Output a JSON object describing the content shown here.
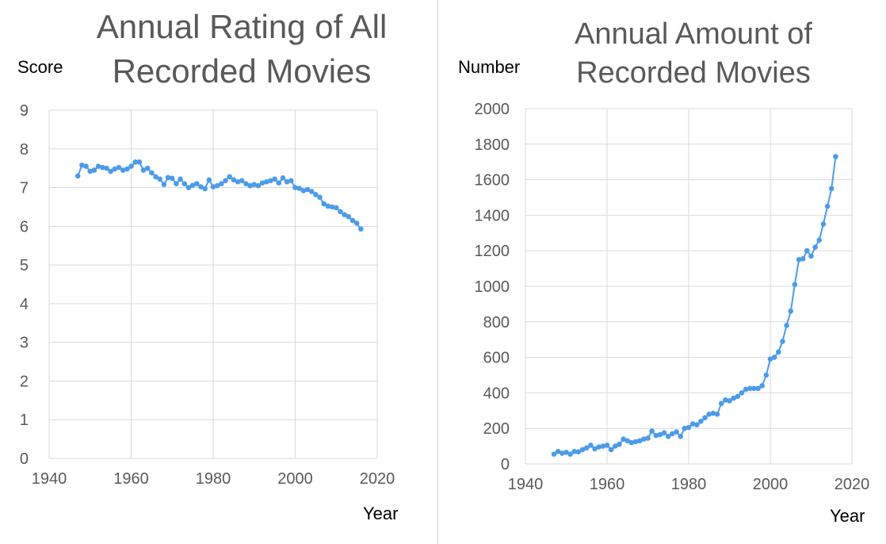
{
  "colors": {
    "series": "#4C9BE8",
    "grid": "#D9D9D9",
    "title": "#595959",
    "text": "#000000"
  },
  "chart_data": [
    {
      "type": "line",
      "title_lines": [
        "Annual Rating of All",
        "Recorded Movies"
      ],
      "xlabel": "Year",
      "ylabel": "Score",
      "xlim": [
        1940,
        2020
      ],
      "ylim": [
        0,
        9
      ],
      "xticks": [
        1940,
        1960,
        1980,
        2000,
        2020
      ],
      "yticks": [
        0,
        1,
        2,
        3,
        4,
        5,
        6,
        7,
        8,
        9
      ],
      "grid": true,
      "markers": true,
      "series": [
        {
          "x": [
            1947,
            1948,
            1949,
            1950,
            1951,
            1952,
            1953,
            1954,
            1955,
            1956,
            1957,
            1958,
            1959,
            1960,
            1961,
            1962,
            1963,
            1964,
            1965,
            1966,
            1967,
            1968,
            1969,
            1970,
            1971,
            1972,
            1973,
            1974,
            1975,
            1976,
            1977,
            1978,
            1979,
            1980,
            1981,
            1982,
            1983,
            1984,
            1985,
            1986,
            1987,
            1988,
            1989,
            1990,
            1991,
            1992,
            1993,
            1994,
            1995,
            1996,
            1997,
            1998,
            1999,
            2000,
            2001,
            2002,
            2003,
            2004,
            2005,
            2006,
            2007,
            2008,
            2009,
            2010,
            2011,
            2012,
            2013,
            2014,
            2015,
            2016
          ],
          "y": [
            7.3,
            7.58,
            7.55,
            7.42,
            7.45,
            7.55,
            7.52,
            7.5,
            7.42,
            7.48,
            7.52,
            7.45,
            7.48,
            7.55,
            7.66,
            7.66,
            7.45,
            7.5,
            7.38,
            7.28,
            7.22,
            7.08,
            7.26,
            7.24,
            7.1,
            7.22,
            7.1,
            7.0,
            7.06,
            7.1,
            7.02,
            6.97,
            7.2,
            7.02,
            7.05,
            7.1,
            7.18,
            7.28,
            7.2,
            7.15,
            7.18,
            7.1,
            7.05,
            7.08,
            7.05,
            7.12,
            7.15,
            7.18,
            7.22,
            7.12,
            7.25,
            7.15,
            7.18,
            7.0,
            6.98,
            6.92,
            6.95,
            6.9,
            6.82,
            6.75,
            6.58,
            6.52,
            6.5,
            6.48,
            6.38,
            6.3,
            6.25,
            6.15,
            6.08,
            5.93
          ]
        }
      ]
    },
    {
      "type": "line",
      "title_lines": [
        "Annual Amount of",
        "Recorded Movies"
      ],
      "xlabel": "Year",
      "ylabel": "Number",
      "xlim": [
        1940,
        2020
      ],
      "ylim": [
        0,
        2000
      ],
      "xticks": [
        1940,
        1960,
        1980,
        2000,
        2020
      ],
      "yticks": [
        0,
        200,
        400,
        600,
        800,
        1000,
        1200,
        1400,
        1600,
        1800,
        2000
      ],
      "grid": true,
      "markers": true,
      "series": [
        {
          "x": [
            1947,
            1948,
            1949,
            1950,
            1951,
            1952,
            1953,
            1954,
            1955,
            1956,
            1957,
            1958,
            1959,
            1960,
            1961,
            1962,
            1963,
            1964,
            1965,
            1966,
            1967,
            1968,
            1969,
            1970,
            1971,
            1972,
            1973,
            1974,
            1975,
            1976,
            1977,
            1978,
            1979,
            1980,
            1981,
            1982,
            1983,
            1984,
            1985,
            1986,
            1987,
            1988,
            1989,
            1990,
            1991,
            1992,
            1993,
            1994,
            1995,
            1996,
            1997,
            1998,
            1999,
            2000,
            2001,
            2002,
            2003,
            2004,
            2005,
            2006,
            2007,
            2008,
            2009,
            2010,
            2011,
            2012,
            2013,
            2014,
            2015,
            2016
          ],
          "y": [
            55,
            70,
            60,
            65,
            55,
            70,
            68,
            80,
            90,
            105,
            85,
            95,
            100,
            105,
            80,
            100,
            110,
            140,
            130,
            120,
            125,
            130,
            140,
            145,
            185,
            160,
            165,
            175,
            155,
            170,
            180,
            155,
            200,
            205,
            225,
            220,
            240,
            260,
            280,
            285,
            280,
            340,
            360,
            355,
            370,
            380,
            400,
            420,
            425,
            425,
            425,
            440,
            500,
            590,
            600,
            630,
            690,
            780,
            860,
            1010,
            1150,
            1155,
            1200,
            1170,
            1220,
            1260,
            1350,
            1450,
            1550,
            1730
          ]
        }
      ]
    }
  ]
}
